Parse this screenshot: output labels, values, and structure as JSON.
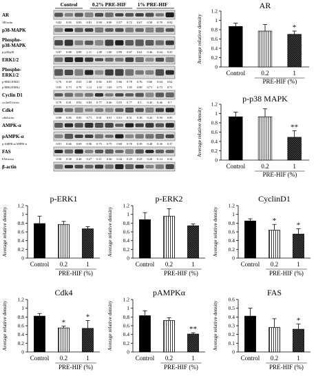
{
  "blot": {
    "groups": [
      "Control",
      "0.2% PRE-HIF",
      "1% PRE-HIF"
    ],
    "lanes_per_group": 3,
    "bands": [
      {
        "name": "AR",
        "ratio_label": "AR/actin",
        "ratios": [
          "0.82",
          "0.93",
          "0.83",
          "0.81",
          "0.90",
          "0.90",
          "0.57",
          "0.72",
          "0.67",
          "0.58",
          "0.78",
          "0.82"
        ]
      },
      {
        "name": "p38-MAPK",
        "ratio_label": "",
        "ratios": []
      },
      {
        "name": "Phospho-p38-MAPK",
        "ratio_label": "p-p38/p38",
        "ratios": [
          "0.87",
          "0.88",
          "0.89",
          "1.11",
          "1.08",
          "1.00",
          "0.99",
          "0.67",
          "0.61",
          "0.46",
          "0.64",
          "0.25"
        ]
      },
      {
        "name": "ERK1/2",
        "ratio_label": "",
        "ratios": []
      },
      {
        "name": "Phospho-ERK1/2",
        "ratio_label": "p-ERK1/ERK1",
        "ratios": [
          "0.76",
          "0.69",
          "0.65",
          "1.08",
          "0.82",
          "0.85",
          "0.66",
          "0.78",
          "0.76",
          "0.66",
          "0.64",
          "0.62"
        ],
        "ratio_label2": "p-ERK2/ERK2",
        "ratios2": [
          "0.83",
          "0.73",
          "0.78",
          "1.12",
          "1.03",
          "1.05",
          "0.75",
          "1.05",
          "0.80",
          "0.71",
          "0.73",
          "0.71"
        ]
      },
      {
        "name": "Cyclin D1",
        "ratio_label": "cyclinD1/actin",
        "ratios": [
          "0.79",
          "0.81",
          "0.92",
          "0.83",
          "0.77",
          "0.46",
          "0.55",
          "0.77",
          "0.5",
          "0.45",
          "0.46",
          "0.7"
        ]
      },
      {
        "name": "Cdk4",
        "ratio_label": "cdk4/actin",
        "ratios": [
          "0.88",
          "0.85",
          "0.85",
          "0.71",
          "0.61",
          "0.61",
          "0.51",
          "0.51",
          "0.38",
          "0.43",
          "0.50",
          "0.85"
        ]
      },
      {
        "name": "AMPK-α",
        "ratio_label": "",
        "ratios": []
      },
      {
        "name": "pAMPK-α",
        "ratio_label": "p-AMPK-α/AMPK-α",
        "ratios": [
          "0.81",
          "0.66",
          "0.69",
          "0.96",
          "0.75",
          "0.75",
          "0.60",
          "0.78",
          "0.39",
          "0.48",
          "0.36",
          "0.37"
        ]
      },
      {
        "name": "FAS",
        "ratio_label": "FAS/actin",
        "ratios": [
          "0.50",
          "0.38",
          "0.48",
          "0.27",
          "0.11",
          "0.36",
          "0.34",
          "0.29",
          "0.25",
          "0.26",
          "0.14",
          "0.34"
        ]
      },
      {
        "name": "β-actin",
        "ratio_label": "",
        "ratios": []
      }
    ]
  },
  "chart_data": [
    {
      "type": "bar",
      "title": "AR",
      "categories": [
        "Control",
        "0.2",
        "1"
      ],
      "values": [
        0.87,
        0.77,
        0.7
      ],
      "errors": [
        0.07,
        0.14,
        0.07
      ],
      "significance": [
        "",
        "",
        "*"
      ],
      "ylabel": "Average relative density",
      "xlabel": "PRE-HIF (%)",
      "ylim": [
        0,
        1.2
      ],
      "yticks": [
        "0",
        "0.2",
        "0.4",
        "0.6",
        "0.8",
        "1",
        "1.2"
      ],
      "grid": false
    },
    {
      "type": "bar",
      "title": "p-p38 MAPK",
      "categories": [
        "Control",
        "0.2",
        "1"
      ],
      "values": [
        0.93,
        0.93,
        0.49
      ],
      "errors": [
        0.1,
        0.17,
        0.14
      ],
      "significance": [
        "",
        "",
        "**"
      ],
      "ylabel": "Average relative density",
      "xlabel": "PRE-HIF (%)",
      "ylim": [
        0,
        1.2
      ],
      "yticks": [
        "0",
        "0.2",
        "0.4",
        "0.6",
        "0.8",
        "1",
        "1.2"
      ],
      "grid": false
    },
    {
      "type": "bar",
      "title": "p-ERK1",
      "categories": [
        "Control",
        "0.2",
        "1"
      ],
      "values": [
        0.79,
        0.77,
        0.67
      ],
      "errors": [
        0.17,
        0.07,
        0.05
      ],
      "significance": [
        "",
        "",
        ""
      ],
      "ylabel": "Average relative density",
      "xlabel": "PRE-HIF (%)",
      "ylim": [
        0,
        1.2
      ],
      "yticks": [
        "0",
        "0.2",
        "0.4",
        "0.6",
        "0.8",
        "1",
        "1.2"
      ],
      "grid": false
    },
    {
      "type": "bar",
      "title": "p-ERK2",
      "categories": [
        "Control",
        "0.2",
        "1"
      ],
      "values": [
        0.88,
        0.96,
        0.74
      ],
      "errors": [
        0.16,
        0.17,
        0.04
      ],
      "significance": [
        "",
        "",
        ""
      ],
      "ylabel": "Average relative density",
      "xlabel": "PRE-HIF (%)",
      "ylim": [
        0,
        1.2
      ],
      "yticks": [
        "0",
        "0.2",
        "0.4",
        "0.6",
        "0.8",
        "1",
        "1.2"
      ],
      "grid": false
    },
    {
      "type": "bar",
      "title": "CyclinD1",
      "categories": [
        "Control",
        "0.2",
        "1"
      ],
      "values": [
        0.85,
        0.64,
        0.55
      ],
      "errors": [
        0.05,
        0.13,
        0.12
      ],
      "significance": [
        "",
        "*",
        "*"
      ],
      "ylabel": "Average relative density",
      "xlabel": "PRE-HIF (%)",
      "ylim": [
        0,
        1.2
      ],
      "yticks": [
        "0",
        "0.2",
        "0.4",
        "0.6",
        "0.8",
        "1",
        "1.2"
      ],
      "grid": false
    },
    {
      "type": "bar",
      "title": "Cdk4",
      "categories": [
        "Control",
        "0.2",
        "1"
      ],
      "values": [
        0.82,
        0.55,
        0.54
      ],
      "errors": [
        0.06,
        0.04,
        0.18
      ],
      "significance": [
        "",
        "*",
        "*"
      ],
      "ylabel": "Average relative density",
      "xlabel": "PRE-HIF (%)",
      "ylim": [
        0,
        1.2
      ],
      "yticks": [
        "0",
        "0.2",
        "0.4",
        "0.6",
        "0.8",
        "1",
        "1.2"
      ],
      "grid": false
    },
    {
      "type": "bar",
      "title": "pAMPKα",
      "categories": [
        "Control",
        "0.2",
        "1"
      ],
      "values": [
        0.83,
        0.72,
        0.41
      ],
      "errors": [
        0.11,
        0.06,
        0.03
      ],
      "significance": [
        "",
        "",
        "**"
      ],
      "ylabel": "Average relative density",
      "xlabel": "PRE-HIF (%)",
      "ylim": [
        0,
        1.2
      ],
      "yticks": [
        "0",
        "0.2",
        "0.4",
        "0.6",
        "0.8",
        "1",
        "1.2"
      ],
      "grid": false
    },
    {
      "type": "bar",
      "title": "FAS",
      "categories": [
        "Control",
        "0.2",
        "1"
      ],
      "values": [
        0.41,
        0.28,
        0.26
      ],
      "errors": [
        0.09,
        0.1,
        0.06
      ],
      "significance": [
        "",
        "",
        "*"
      ],
      "ylabel": "Average relative density",
      "xlabel": "PRE-HIF (%)",
      "ylim": [
        0,
        0.6
      ],
      "yticks": [
        "0",
        "0.1",
        "0.2",
        "0.3",
        "0.4",
        "0.5",
        "0.6"
      ],
      "grid": false
    }
  ]
}
